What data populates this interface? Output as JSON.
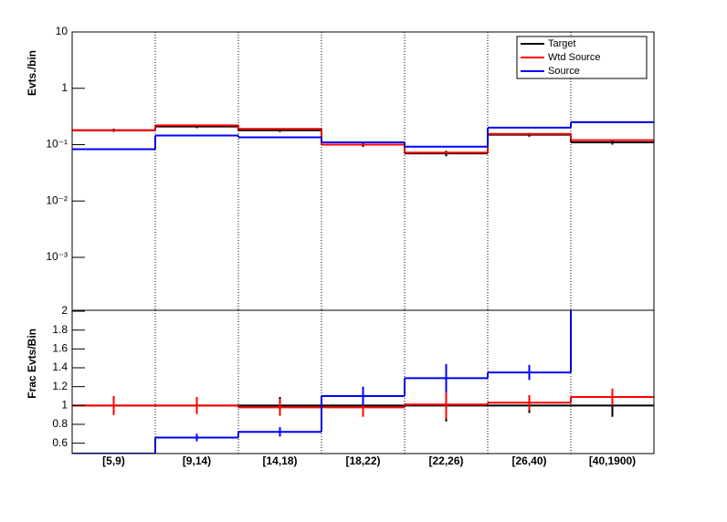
{
  "chart_data": [
    {
      "type": "step",
      "y_label": "Evts./bin",
      "log_y": true,
      "ylim": [
        0.000115,
        10
      ],
      "yticks": [
        {
          "value": 0.001,
          "label": "10⁻³"
        },
        {
          "value": 0.01,
          "label": "10⁻²"
        },
        {
          "value": 0.1,
          "label": "10⁻¹"
        },
        1,
        10
      ],
      "legend": "top-right",
      "series": [
        {
          "name": "Target",
          "color": "#000000",
          "values": [
            0.18,
            0.21,
            0.18,
            0.1,
            0.07,
            0.15,
            0.11
          ],
          "errors": [
            0.012,
            0.014,
            0.012,
            0.009,
            0.008,
            0.012,
            0.01
          ]
        },
        {
          "name": "Wtd Source",
          "color": "#ff0000",
          "values": [
            0.18,
            0.22,
            0.19,
            0.1,
            0.072,
            0.155,
            0.12
          ],
          "errors": [
            null,
            null,
            null,
            null,
            null,
            null,
            null
          ]
        },
        {
          "name": "Source",
          "color": "#0000ff",
          "values": [
            0.083,
            0.145,
            0.135,
            0.11,
            0.092,
            0.2,
            0.25
          ],
          "errors": [
            null,
            null,
            null,
            null,
            null,
            null,
            null
          ]
        }
      ]
    },
    {
      "type": "step",
      "y_label": "Frac Evts/Bin",
      "categories": [
        "[5,9)",
        "[9,14)",
        "[14,18)",
        "[18,22)",
        "[22,26)",
        "[26,40)",
        "[40,1900)"
      ],
      "ylim": [
        0.49,
        2.01
      ],
      "yticks": [
        0.6,
        0.8,
        1,
        1.2,
        1.4,
        1.6,
        1.8,
        2
      ],
      "series": [
        {
          "name": "Target",
          "color": "#000000",
          "values": [
            1,
            1,
            1,
            1,
            1,
            1,
            1
          ],
          "errors": [
            0.1,
            0.09,
            0.09,
            0.1,
            0.17,
            0.08,
            0.12
          ]
        },
        {
          "name": "Wtd Source",
          "color": "#ff0000",
          "values": [
            1,
            1,
            0.98,
            0.98,
            1.01,
            1.03,
            1.09
          ],
          "errors": [
            0.1,
            0.09,
            0.09,
            0.1,
            0.15,
            0.08,
            0.09
          ]
        },
        {
          "name": "Source",
          "color": "#0000ff",
          "values": [
            0.49,
            0.66,
            0.72,
            1.1,
            1.29,
            1.35,
            2.05
          ],
          "errors": [
            null,
            0.04,
            0.05,
            0.1,
            0.15,
            0.08,
            null
          ]
        }
      ]
    }
  ]
}
